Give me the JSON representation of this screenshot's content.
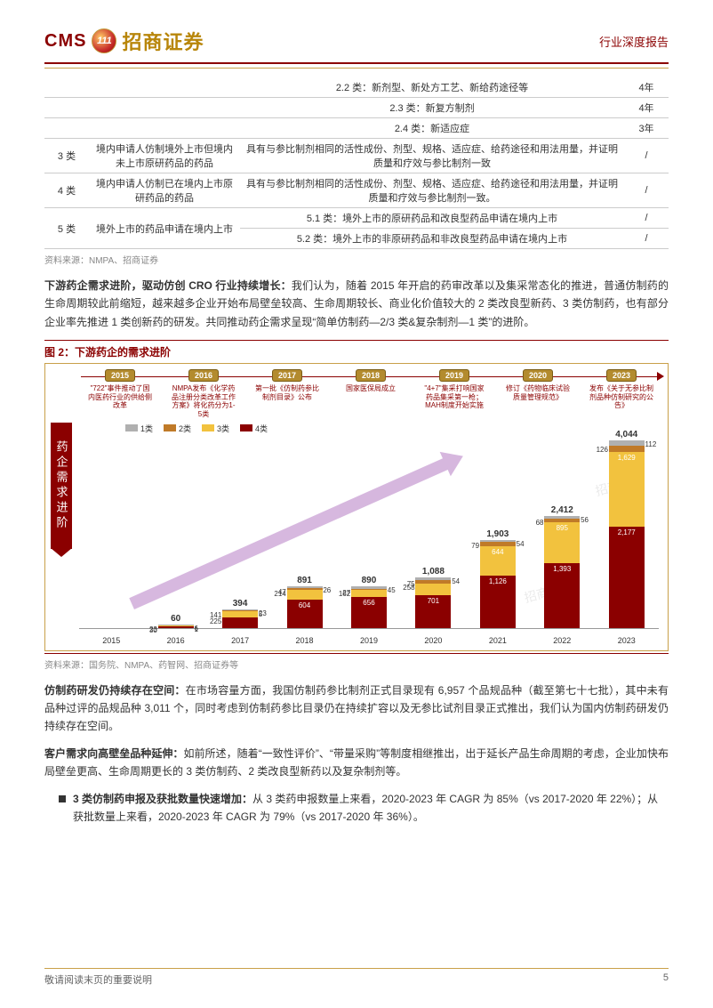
{
  "header": {
    "logo_cms": "CMS",
    "logo_badge": "111",
    "logo_cn": "招商证券",
    "right": "行业深度报告"
  },
  "table": {
    "rows": [
      {
        "idx": "",
        "desc": "",
        "content": "2.2 类：新剂型、新处方工艺、新给药途径等",
        "years": "4年"
      },
      {
        "idx": "",
        "desc": "",
        "content": "2.3 类：新复方制剂",
        "years": "4年"
      },
      {
        "idx": "",
        "desc": "",
        "content": "2.4 类：新适应症",
        "years": "3年"
      },
      {
        "idx": "3 类",
        "desc": "境内申请人仿制境外上市但境内未上市原研药品的药品",
        "content": "具有与参比制剂相同的活性成份、剂型、规格、适应症、给药途径和用法用量，并证明质量和疗效与参比制剂一致",
        "years": "/"
      },
      {
        "idx": "4 类",
        "desc": "境内申请人仿制已在境内上市原研药品的药品",
        "content": "具有与参比制剂相同的活性成份、剂型、规格、适应症、给药途径和用法用量，并证明质量和疗效与参比制剂一致。",
        "years": "/"
      },
      {
        "idx": "5 类",
        "desc": "境外上市的药品申请在境内上市",
        "content": "5.1 类：境外上市的原研药品和改良型药品申请在境内上市\n5.2 类：境外上市的非原研药品和非改良型药品申请在境内上市",
        "years": "/\n/"
      }
    ],
    "source": "资料来源：NMPA、招商证券"
  },
  "para1": {
    "bold": "下游药企需求进阶，驱动仿创 CRO 行业持续增长：",
    "text": "我们认为，随着 2015 年开启的药审改革以及集采常态化的推进，普通仿制药的生命周期较此前缩短，越来越多企业开始布局壁垒较高、生命周期较长、商业化价值较大的 2 类改良型新药、3 类仿制药，也有部分企业率先推进 1 类创新药的研发。共同推动药企需求呈现“简单仿制药—2/3 类&复杂制剂—1 类”的进阶。"
  },
  "figure": {
    "title": "图 2：下游药企的需求进阶",
    "timeline": [
      {
        "year": "2015",
        "desc": "\"722\"事件推动了国内医药行业的供给侧改革"
      },
      {
        "year": "2016",
        "desc": "NMPA发布《化学药品注册分类改革工作方案》将化药分为1-5类"
      },
      {
        "year": "2017",
        "desc": "第一批《仿制药参比制剂目录》公布"
      },
      {
        "year": "2018",
        "desc": "国家医保局成立"
      },
      {
        "year": "2019",
        "desc": "\"4+7\"集采打响国家药品集采第一枪；MAH制度开始实施"
      },
      {
        "year": "2020",
        "desc": "修订《药物临床试验质量管理规范》"
      },
      {
        "year": "2023",
        "desc": "发布《关于无参比制剂品种仿制研究的公告》"
      }
    ],
    "side_label": "药企需求进阶",
    "legend": [
      {
        "label": "1类",
        "color": "#b0b0b0"
      },
      {
        "label": "2类",
        "color": "#c07a28"
      },
      {
        "label": "3类",
        "color": "#f2c23e"
      },
      {
        "label": "4类",
        "color": "#8b0000"
      }
    ],
    "scale": 0.052,
    "years": [
      "2015",
      "2016",
      "2017",
      "2018",
      "2019",
      "2020",
      "2021",
      "2022",
      "2023"
    ],
    "bars": [
      {
        "year": "2015",
        "total": "",
        "segs": []
      },
      {
        "year": "2016",
        "total": "60",
        "segs": [
          {
            "v": 30,
            "c": "#8b0000",
            "lbl": "30",
            "pos": "left"
          },
          {
            "v": 23,
            "c": "#f2c23e",
            "lbl": "23",
            "pos": "left"
          },
          {
            "v": 1,
            "c": "#c07a28",
            "lbl": "1",
            "pos": "right"
          },
          {
            "v": 6,
            "c": "#b0b0b0",
            "lbl": "6",
            "pos": "right"
          }
        ]
      },
      {
        "year": "2017",
        "total": "394",
        "segs": [
          {
            "v": 225,
            "c": "#8b0000",
            "lbl": "225",
            "pos": "inside"
          },
          {
            "v": 141,
            "c": "#f2c23e",
            "lbl": "141",
            "pos": "left"
          },
          {
            "v": 5,
            "c": "#c07a28",
            "lbl": "5",
            "pos": "right"
          },
          {
            "v": 23,
            "c": "#b0b0b0",
            "lbl": "23",
            "pos": "right"
          }
        ]
      },
      {
        "year": "2018",
        "total": "891",
        "segs": [
          {
            "v": 604,
            "c": "#8b0000",
            "lbl": "604",
            "pos": "inside"
          },
          {
            "v": 214,
            "c": "#f2c23e",
            "lbl": "214",
            "pos": "left"
          },
          {
            "v": 47,
            "c": "#c07a28",
            "lbl": "47",
            "pos": "left"
          },
          {
            "v": 26,
            "c": "#b0b0b0",
            "lbl": "26",
            "pos": "right"
          }
        ]
      },
      {
        "year": "2019",
        "total": "890",
        "segs": [
          {
            "v": 656,
            "c": "#8b0000",
            "lbl": "656",
            "pos": "inside"
          },
          {
            "v": 162,
            "c": "#f2c23e",
            "lbl": "162",
            "pos": "left"
          },
          {
            "v": 27,
            "c": "#c07a28",
            "lbl": "27",
            "pos": "left"
          },
          {
            "v": 45,
            "c": "#b0b0b0",
            "lbl": "45",
            "pos": "right"
          }
        ]
      },
      {
        "year": "2020",
        "total": "1,088",
        "segs": [
          {
            "v": 701,
            "c": "#8b0000",
            "lbl": "701",
            "pos": "inside"
          },
          {
            "v": 258,
            "c": "#f2c23e",
            "lbl": "258",
            "pos": "left"
          },
          {
            "v": 75,
            "c": "#c07a28",
            "lbl": "75",
            "pos": "left"
          },
          {
            "v": 54,
            "c": "#b0b0b0",
            "lbl": "54",
            "pos": "right"
          }
        ]
      },
      {
        "year": "2021",
        "total": "1,903",
        "segs": [
          {
            "v": 1126,
            "c": "#8b0000",
            "lbl": "1,126",
            "pos": "inside"
          },
          {
            "v": 644,
            "c": "#f2c23e",
            "lbl": "644",
            "pos": "inside"
          },
          {
            "v": 79,
            "c": "#c07a28",
            "lbl": "79",
            "pos": "left"
          },
          {
            "v": 54,
            "c": "#b0b0b0",
            "lbl": "54",
            "pos": "right"
          }
        ]
      },
      {
        "year": "2022",
        "total": "2,412",
        "segs": [
          {
            "v": 1393,
            "c": "#8b0000",
            "lbl": "1,393",
            "pos": "inside"
          },
          {
            "v": 895,
            "c": "#f2c23e",
            "lbl": "895",
            "pos": "inside"
          },
          {
            "v": 68,
            "c": "#c07a28",
            "lbl": "68",
            "pos": "left"
          },
          {
            "v": 56,
            "c": "#b0b0b0",
            "lbl": "56",
            "pos": "right"
          }
        ]
      },
      {
        "year": "2023",
        "total": "4,044",
        "segs": [
          {
            "v": 2177,
            "c": "#8b0000",
            "lbl": "2,177",
            "pos": "inside"
          },
          {
            "v": 1629,
            "c": "#f2c23e",
            "lbl": "1,629",
            "pos": "inside"
          },
          {
            "v": 126,
            "c": "#c07a28",
            "lbl": "126",
            "pos": "left"
          },
          {
            "v": 112,
            "c": "#b0b0b0",
            "lbl": "112",
            "pos": "right"
          }
        ]
      }
    ],
    "source": "资料来源：国务院、NMPA、药智网、招商证券等",
    "watermark": "招商医药"
  },
  "para2": {
    "bold": "仿制药研发仍持续存在空间：",
    "text": "在市场容量方面，我国仿制药参比制剂正式目录现有 6,957 个品规品种（截至第七十七批），其中未有品种过评的品规品种 3,011 个，同时考虑到仿制药参比目录仍在持续扩容以及无参比试剂目录正式推出，我们认为国内仿制药研发仍持续存在空间。"
  },
  "para3": {
    "bold": "客户需求向高壁垒品种延伸：",
    "text": "如前所述，随着“一致性评价”、“带量采购”等制度相继推出，出于延长产品生命周期的考虑，企业加快布局壁垒更高、生命周期更长的 3 类仿制药、2 类改良型新药以及复杂制剂等。"
  },
  "bullet1": {
    "bold": "3 类仿制药申报及获批数量快速增加：",
    "text": "从 3 类药申报数量上来看，2020-2023 年 CAGR 为 85%（vs 2017-2020 年 22%）；从获批数量上来看，2020-2023 年 CAGR 为 79%（vs 2017-2020 年 36%）。"
  },
  "footer": {
    "note": "敬请阅读末页的重要说明",
    "page": "5"
  }
}
